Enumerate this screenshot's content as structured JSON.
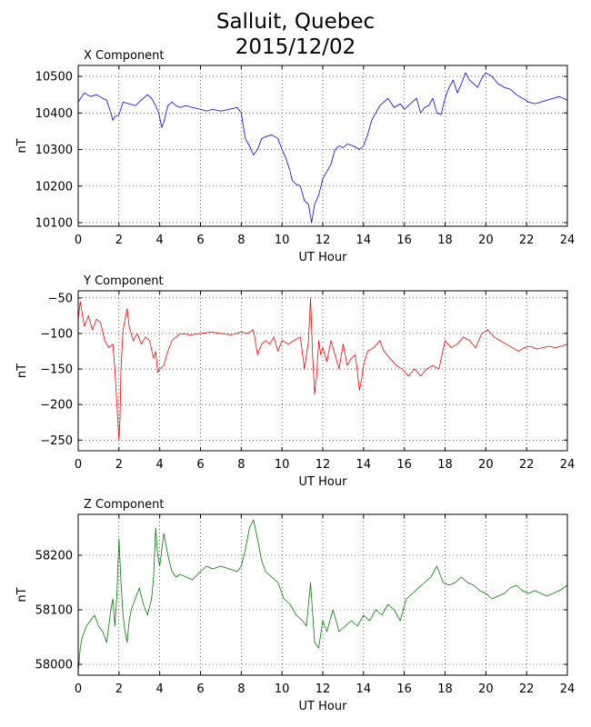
{
  "title_lines": [
    "Salluit, Quebec",
    "2015/12/02"
  ],
  "chart_data": [
    {
      "type": "line",
      "title": "X Component",
      "xlabel": "UT Hour",
      "ylabel": "nT",
      "xlim": [
        0,
        24
      ],
      "ylim": [
        10090,
        10530
      ],
      "xticks": [
        0,
        2,
        4,
        6,
        8,
        10,
        12,
        14,
        16,
        18,
        20,
        22,
        24
      ],
      "yticks": [
        10100,
        10200,
        10300,
        10400,
        10500
      ],
      "grid": true,
      "series": [
        {
          "color": "#0000ff",
          "x": [
            0,
            0.3,
            0.6,
            0.9,
            1.2,
            1.4,
            1.6,
            1.7,
            1.8,
            2.0,
            2.2,
            2.5,
            2.8,
            3.1,
            3.4,
            3.6,
            3.8,
            3.95,
            4.1,
            4.2,
            4.4,
            4.6,
            4.8,
            5.0,
            5.3,
            5.6,
            6.0,
            6.3,
            6.6,
            7.0,
            7.4,
            7.8,
            8.0,
            8.2,
            8.4,
            8.6,
            8.8,
            9.0,
            9.2,
            9.5,
            9.8,
            10.0,
            10.2,
            10.4,
            10.5,
            10.7,
            10.9,
            11.1,
            11.3,
            11.45,
            11.6,
            11.8,
            12.0,
            12.2,
            12.4,
            12.6,
            12.8,
            13.0,
            13.2,
            13.5,
            13.8,
            14.0,
            14.2,
            14.4,
            14.6,
            14.8,
            15.0,
            15.2,
            15.5,
            15.8,
            16.0,
            16.2,
            16.4,
            16.6,
            16.8,
            17.0,
            17.2,
            17.4,
            17.6,
            17.8,
            18.0,
            18.2,
            18.4,
            18.6,
            18.8,
            19.0,
            19.2,
            19.4,
            19.6,
            19.8,
            20.0,
            20.3,
            20.6,
            20.9,
            21.2,
            21.5,
            21.8,
            22.1,
            22.4,
            22.7,
            23.0,
            23.3,
            23.6,
            24.0
          ],
          "y": [
            10430,
            10455,
            10445,
            10450,
            10440,
            10435,
            10400,
            10380,
            10390,
            10395,
            10430,
            10425,
            10420,
            10435,
            10450,
            10440,
            10420,
            10400,
            10360,
            10375,
            10420,
            10430,
            10420,
            10415,
            10420,
            10415,
            10410,
            10405,
            10410,
            10405,
            10410,
            10415,
            10400,
            10330,
            10310,
            10285,
            10300,
            10330,
            10335,
            10340,
            10330,
            10300,
            10275,
            10240,
            10215,
            10205,
            10200,
            10160,
            10150,
            10100,
            10150,
            10175,
            10220,
            10240,
            10260,
            10300,
            10310,
            10305,
            10315,
            10310,
            10300,
            10310,
            10340,
            10380,
            10400,
            10420,
            10430,
            10440,
            10415,
            10425,
            10410,
            10420,
            10430,
            10440,
            10400,
            10415,
            10420,
            10440,
            10400,
            10395,
            10440,
            10470,
            10490,
            10455,
            10480,
            10510,
            10490,
            10480,
            10470,
            10495,
            10510,
            10500,
            10480,
            10470,
            10465,
            10450,
            10440,
            10430,
            10425,
            10430,
            10435,
            10440,
            10445,
            10435
          ]
        }
      ]
    },
    {
      "type": "line",
      "title": "Y Component",
      "xlabel": "UT Hour",
      "ylabel": "nT",
      "xlim": [
        0,
        24
      ],
      "ylim": [
        -265,
        -40
      ],
      "xticks": [
        0,
        2,
        4,
        6,
        8,
        10,
        12,
        14,
        16,
        18,
        20,
        22,
        24
      ],
      "yticks": [
        -250,
        -200,
        -150,
        -100,
        -50
      ],
      "grid": true,
      "series": [
        {
          "color": "#ff0000",
          "x": [
            0,
            0.1,
            0.3,
            0.5,
            0.7,
            0.9,
            1.1,
            1.3,
            1.5,
            1.7,
            1.8,
            1.9,
            2.0,
            2.05,
            2.1,
            2.2,
            2.3,
            2.4,
            2.5,
            2.7,
            2.9,
            3.1,
            3.3,
            3.5,
            3.7,
            3.8,
            3.9,
            4.0,
            4.2,
            4.4,
            4.6,
            4.8,
            5.0,
            5.5,
            6.0,
            6.5,
            7.0,
            7.5,
            8.0,
            8.3,
            8.6,
            8.8,
            9.0,
            9.2,
            9.4,
            9.6,
            9.8,
            10.0,
            10.3,
            10.6,
            10.9,
            11.1,
            11.3,
            11.4,
            11.5,
            11.6,
            11.7,
            11.8,
            11.9,
            12.0,
            12.2,
            12.4,
            12.6,
            12.8,
            13.0,
            13.2,
            13.4,
            13.6,
            13.8,
            13.9,
            14.0,
            14.2,
            14.5,
            14.8,
            15.0,
            15.3,
            15.6,
            15.9,
            16.2,
            16.5,
            16.8,
            17.1,
            17.4,
            17.7,
            18.0,
            18.3,
            18.6,
            18.9,
            19.2,
            19.5,
            19.8,
            20.1,
            20.4,
            20.7,
            21.0,
            21.3,
            21.6,
            21.9,
            22.2,
            22.5,
            22.8,
            23.1,
            23.4,
            23.7,
            24.0
          ],
          "y": [
            -80,
            -55,
            -90,
            -75,
            -95,
            -80,
            -85,
            -110,
            -120,
            -115,
            -150,
            -200,
            -250,
            -220,
            -150,
            -95,
            -80,
            -65,
            -90,
            -110,
            -100,
            -115,
            -105,
            -110,
            -135,
            -125,
            -155,
            -150,
            -145,
            -125,
            -110,
            -105,
            -100,
            -102,
            -100,
            -98,
            -100,
            -102,
            -98,
            -100,
            -95,
            -130,
            -115,
            -110,
            -115,
            -105,
            -125,
            -110,
            -115,
            -110,
            -105,
            -150,
            -110,
            -50,
            -130,
            -185,
            -160,
            -110,
            -130,
            -120,
            -140,
            -110,
            -130,
            -150,
            -115,
            -145,
            -135,
            -130,
            -180,
            -165,
            -145,
            -125,
            -120,
            -110,
            -125,
            -135,
            -145,
            -150,
            -160,
            -150,
            -160,
            -150,
            -145,
            -150,
            -110,
            -120,
            -115,
            -105,
            -110,
            -120,
            -100,
            -95,
            -105,
            -110,
            -115,
            -120,
            -125,
            -120,
            -118,
            -122,
            -120,
            -118,
            -120,
            -118,
            -115
          ]
        }
      ]
    },
    {
      "type": "line",
      "title": "Z Component",
      "xlabel": "UT Hour",
      "ylabel": "nT",
      "xlim": [
        0,
        24
      ],
      "ylim": [
        57980,
        58275
      ],
      "xticks": [
        0,
        2,
        4,
        6,
        8,
        10,
        12,
        14,
        16,
        18,
        20,
        22,
        24
      ],
      "yticks": [
        58000,
        58100,
        58200
      ],
      "grid": true,
      "series": [
        {
          "color": "#008000",
          "x": [
            0,
            0.1,
            0.2,
            0.4,
            0.6,
            0.8,
            1.0,
            1.2,
            1.4,
            1.6,
            1.7,
            1.8,
            1.9,
            2.0,
            2.1,
            2.2,
            2.3,
            2.4,
            2.5,
            2.6,
            2.8,
            3.0,
            3.2,
            3.4,
            3.6,
            3.7,
            3.8,
            3.9,
            4.0,
            4.2,
            4.4,
            4.6,
            4.8,
            5.0,
            5.3,
            5.6,
            6.0,
            6.3,
            6.6,
            7.0,
            7.4,
            7.8,
            8.0,
            8.2,
            8.4,
            8.6,
            8.8,
            9.0,
            9.2,
            9.5,
            9.8,
            10.1,
            10.4,
            10.7,
            11.0,
            11.2,
            11.4,
            11.6,
            11.8,
            12.0,
            12.2,
            12.5,
            12.8,
            13.1,
            13.4,
            13.7,
            14.0,
            14.3,
            14.6,
            14.9,
            15.2,
            15.5,
            15.8,
            16.1,
            16.4,
            16.7,
            17.0,
            17.3,
            17.6,
            17.9,
            18.2,
            18.5,
            18.8,
            19.1,
            19.4,
            19.7,
            20.0,
            20.3,
            20.6,
            20.9,
            21.2,
            21.5,
            21.8,
            22.1,
            22.4,
            22.7,
            23.0,
            23.3,
            23.6,
            24.0
          ],
          "y": [
            57985,
            58030,
            58050,
            58070,
            58080,
            58090,
            58070,
            58060,
            58040,
            58100,
            58120,
            58070,
            58130,
            58230,
            58150,
            58090,
            58060,
            58040,
            58080,
            58100,
            58120,
            58140,
            58110,
            58090,
            58120,
            58160,
            58250,
            58200,
            58180,
            58240,
            58200,
            58170,
            58160,
            58165,
            58160,
            58155,
            58170,
            58180,
            58175,
            58180,
            58175,
            58170,
            58180,
            58210,
            58250,
            58265,
            58230,
            58190,
            58170,
            58160,
            58150,
            58120,
            58110,
            58090,
            58080,
            58070,
            58150,
            58040,
            58030,
            58080,
            58060,
            58100,
            58060,
            58070,
            58080,
            58070,
            58090,
            58080,
            58100,
            58090,
            58110,
            58100,
            58080,
            58120,
            58130,
            58140,
            58150,
            58160,
            58180,
            58150,
            58145,
            58150,
            58160,
            58150,
            58145,
            58135,
            58130,
            58120,
            58125,
            58130,
            58140,
            58145,
            58135,
            58130,
            58135,
            58130,
            58125,
            58130,
            58135,
            58145
          ]
        }
      ]
    }
  ]
}
